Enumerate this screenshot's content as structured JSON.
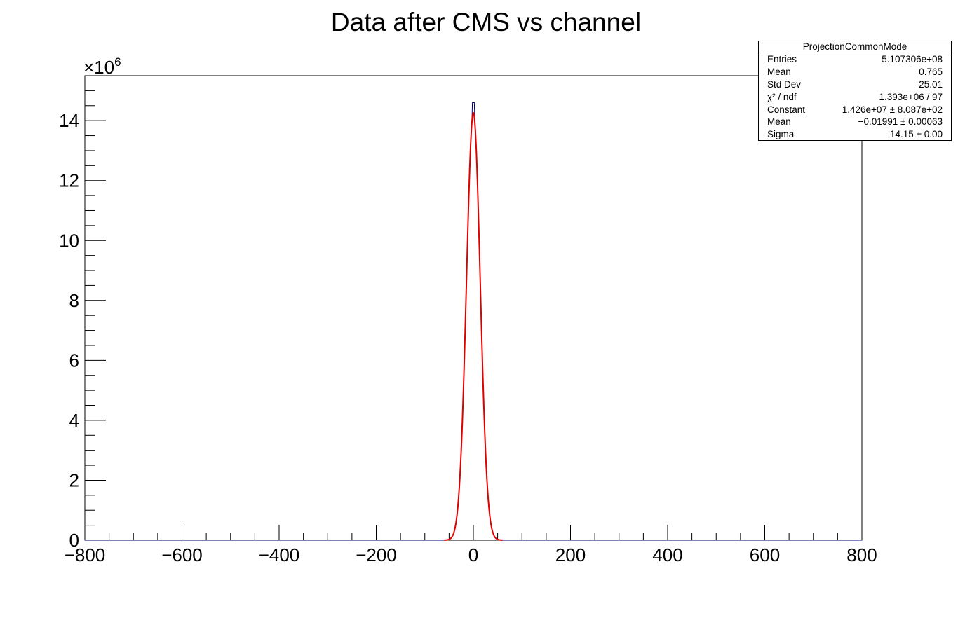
{
  "chart_data": {
    "type": "line",
    "title": "Data after CMS vs channel",
    "xlabel": "",
    "ylabel": "",
    "xlim": [
      -800,
      800
    ],
    "ylim": [
      0,
      15.5
    ],
    "y_multiplier_label": "×10",
    "y_multiplier_exp": "6",
    "x_ticks": [
      "−800",
      "−600",
      "−400",
      "−200",
      "0",
      "200",
      "400",
      "600",
      "800"
    ],
    "x_tick_values": [
      -800,
      -600,
      -400,
      -200,
      0,
      200,
      400,
      600,
      800
    ],
    "y_ticks": [
      "0",
      "2",
      "4",
      "6",
      "8",
      "10",
      "12",
      "14"
    ],
    "y_tick_values": [
      0,
      2,
      4,
      6,
      8,
      10,
      12,
      14
    ],
    "histogram": {
      "name": "ProjectionCommonMode",
      "color": "#000080",
      "peak_x": 0,
      "peak_y": 14.6
    },
    "fit": {
      "function": "gaus",
      "color": "#e00000",
      "constant": 14.26,
      "mean": -0.01991,
      "sigma": 14.15
    },
    "grid": false,
    "legend": "top-right"
  },
  "stats_box": {
    "title": "ProjectionCommonMode",
    "rows": [
      {
        "key": "Entries",
        "value": "5.107306e+08"
      },
      {
        "key": "Mean",
        "value": "0.765"
      },
      {
        "key": "Std Dev",
        "value": "25.01"
      },
      {
        "key": "χ² / ndf",
        "value": "1.393e+06 / 97"
      },
      {
        "key": "Constant",
        "value": "1.426e+07 ± 8.087e+02"
      },
      {
        "key": "Mean",
        "value": "−0.01991 ± 0.00063"
      },
      {
        "key": "Sigma",
        "value": "14.15 ± 0.00"
      }
    ]
  }
}
